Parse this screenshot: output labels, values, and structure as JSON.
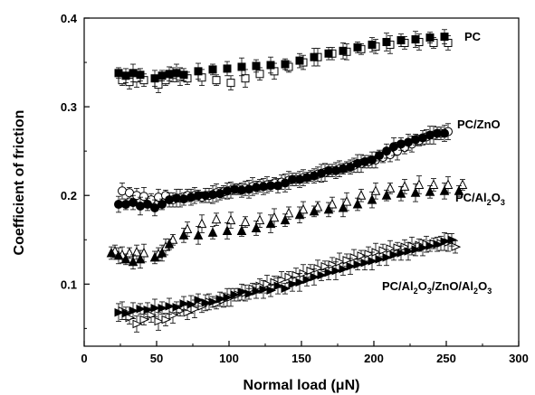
{
  "chart_data": {
    "type": "scatter",
    "title": "",
    "xlabel": "Normal load (μN)",
    "ylabel": "Coefficient of friction",
    "xlim": [
      0,
      300
    ],
    "ylim": [
      0.03,
      0.4
    ],
    "xticks": [
      "0",
      "50",
      "100",
      "150",
      "200",
      "250",
      "300"
    ],
    "yticks": [
      "0.1",
      "0.2",
      "0.3",
      "0.4"
    ],
    "error_bars": true,
    "grid": false,
    "series": [
      {
        "name": "PC",
        "label_parts": [
          {
            "text": "PC",
            "sub": false
          }
        ],
        "markers": [
          "filled-square",
          "open-square"
        ],
        "x": [
          25,
          30,
          35,
          40,
          50,
          55,
          60,
          65,
          70,
          80,
          90,
          100,
          110,
          120,
          130,
          140,
          150,
          160,
          170,
          180,
          190,
          200,
          210,
          220,
          230,
          240,
          250
        ],
        "y_filled": [
          0.338,
          0.335,
          0.338,
          0.336,
          0.332,
          0.335,
          0.337,
          0.338,
          0.336,
          0.34,
          0.342,
          0.343,
          0.345,
          0.346,
          0.347,
          0.348,
          0.352,
          0.356,
          0.36,
          0.363,
          0.367,
          0.37,
          0.373,
          0.375,
          0.376,
          0.378,
          0.379
        ],
        "y_open": [
          0.33,
          0.328,
          0.332,
          0.33,
          0.325,
          0.33,
          0.336,
          0.334,
          0.332,
          0.333,
          0.33,
          0.327,
          0.332,
          0.337,
          0.34,
          0.345,
          0.35,
          0.356,
          0.36,
          0.362,
          0.365,
          0.368,
          0.37,
          0.372,
          0.373,
          0.372,
          0.372
        ]
      },
      {
        "name": "PC/ZnO",
        "label_parts": [
          {
            "text": "PC/ZnO",
            "sub": false
          }
        ],
        "markers": [
          "filled-circle",
          "open-circle"
        ],
        "x": [
          25,
          30,
          35,
          40,
          45,
          50,
          55,
          60,
          65,
          70,
          75,
          80,
          85,
          90,
          95,
          100,
          105,
          110,
          115,
          120,
          125,
          130,
          135,
          140,
          145,
          150,
          155,
          160,
          165,
          170,
          175,
          180,
          185,
          190,
          195,
          200,
          205,
          210,
          215,
          220,
          225,
          230,
          235,
          240,
          245,
          250
        ],
        "y_filled": [
          0.19,
          0.19,
          0.192,
          0.188,
          0.19,
          0.186,
          0.19,
          0.195,
          0.197,
          0.196,
          0.198,
          0.2,
          0.2,
          0.201,
          0.202,
          0.205,
          0.207,
          0.206,
          0.207,
          0.209,
          0.21,
          0.211,
          0.211,
          0.214,
          0.218,
          0.218,
          0.22,
          0.222,
          0.225,
          0.228,
          0.228,
          0.23,
          0.232,
          0.236,
          0.238,
          0.24,
          0.245,
          0.25,
          0.255,
          0.258,
          0.26,
          0.263,
          0.265,
          0.268,
          0.27,
          0.27
        ],
        "y_open": [
          0.205,
          0.203,
          0.2,
          0.199,
          0.195,
          0.198,
          0.2,
          0.195,
          0.197,
          0.2,
          0.2,
          0.198,
          0.2,
          0.203,
          0.204,
          0.206,
          0.207,
          0.208,
          0.21,
          0.211,
          0.212,
          0.214,
          0.215,
          0.217,
          0.218,
          0.22,
          0.222,
          0.224,
          0.226,
          0.228,
          0.23,
          0.232,
          0.234,
          0.236,
          0.238,
          0.24,
          0.243,
          0.246,
          0.25,
          0.254,
          0.258,
          0.262,
          0.266,
          0.268,
          0.27,
          0.272
        ]
      },
      {
        "name": "PC/Al2O3",
        "label_parts": [
          {
            "text": "PC/Al",
            "sub": false
          },
          {
            "text": "2",
            "sub": true
          },
          {
            "text": "O",
            "sub": false
          },
          {
            "text": "3",
            "sub": true
          }
        ],
        "markers": [
          "filled-triangle",
          "open-triangle"
        ],
        "x": [
          20,
          25,
          30,
          35,
          40,
          50,
          55,
          60,
          70,
          80,
          90,
          100,
          110,
          120,
          130,
          140,
          150,
          160,
          170,
          180,
          190,
          200,
          210,
          220,
          230,
          240,
          250,
          260
        ],
        "y_filled": [
          0.135,
          0.132,
          0.128,
          0.125,
          0.128,
          0.13,
          0.135,
          0.145,
          0.155,
          0.155,
          0.158,
          0.16,
          0.16,
          0.163,
          0.168,
          0.172,
          0.178,
          0.182,
          0.184,
          0.186,
          0.19,
          0.195,
          0.2,
          0.202,
          0.203,
          0.204,
          0.205,
          0.205
        ],
        "y_open": [
          0.137,
          0.133,
          0.135,
          0.136,
          0.135,
          0.134,
          0.142,
          0.15,
          0.162,
          0.168,
          0.173,
          0.172,
          0.17,
          0.172,
          0.175,
          0.18,
          0.184,
          0.187,
          0.19,
          0.193,
          0.2,
          0.205,
          0.208,
          0.21,
          0.212,
          0.212,
          0.212,
          0.212
        ]
      },
      {
        "name": "PC/Al2O3/ZnO/Al2O3",
        "label_parts": [
          {
            "text": "PC/Al",
            "sub": false
          },
          {
            "text": "2",
            "sub": true
          },
          {
            "text": "O",
            "sub": false
          },
          {
            "text": "3",
            "sub": true
          },
          {
            "text": "/ZnO/Al",
            "sub": false
          },
          {
            "text": "2",
            "sub": true
          },
          {
            "text": "O",
            "sub": false
          },
          {
            "text": "3",
            "sub": true
          }
        ],
        "markers": [
          "filled-right-triangle",
          "open-right-triangle"
        ],
        "x": [
          25,
          30,
          35,
          40,
          45,
          50,
          55,
          60,
          65,
          70,
          75,
          80,
          85,
          90,
          95,
          100,
          105,
          110,
          115,
          120,
          125,
          130,
          135,
          140,
          145,
          150,
          155,
          160,
          165,
          170,
          175,
          180,
          185,
          190,
          195,
          200,
          205,
          210,
          215,
          220,
          225,
          230,
          235,
          240,
          245,
          250,
          255
        ],
        "y_filled": [
          0.068,
          0.067,
          0.07,
          0.072,
          0.071,
          0.073,
          0.073,
          0.075,
          0.074,
          0.078,
          0.077,
          0.082,
          0.079,
          0.08,
          0.083,
          0.085,
          0.088,
          0.091,
          0.089,
          0.092,
          0.094,
          0.093,
          0.098,
          0.095,
          0.1,
          0.102,
          0.105,
          0.108,
          0.11,
          0.113,
          0.115,
          0.117,
          0.12,
          0.122,
          0.124,
          0.126,
          0.128,
          0.13,
          0.133,
          0.135,
          0.137,
          0.139,
          0.141,
          0.143,
          0.145,
          0.148,
          0.15
        ],
        "y_open": [
          0.07,
          0.062,
          0.055,
          0.06,
          0.065,
          0.058,
          0.06,
          0.065,
          0.07,
          0.068,
          0.072,
          0.075,
          0.08,
          0.078,
          0.082,
          0.085,
          0.088,
          0.09,
          0.095,
          0.098,
          0.1,
          0.102,
          0.105,
          0.108,
          0.11,
          0.112,
          0.115,
          0.118,
          0.12,
          0.122,
          0.125,
          0.127,
          0.13,
          0.132,
          0.134,
          0.136,
          0.138,
          0.14,
          0.141,
          0.142,
          0.143,
          0.144,
          0.145,
          0.146,
          0.146,
          0.147,
          0.142
        ]
      }
    ]
  }
}
